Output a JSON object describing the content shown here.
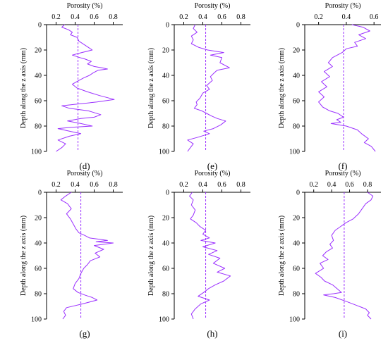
{
  "figure": {
    "panel_axis_label": "Porosity (%)",
    "depth_axis_label": "Depth along the z axis (mm)",
    "colors": {
      "profile": "#9b30ff",
      "mean_line": "#9b30ff",
      "axis": "#000000"
    }
  },
  "chart_data": [
    {
      "panel": "(d)",
      "type": "line",
      "title": "",
      "xlabel": "Porosity (%)",
      "ylabel": "Depth along the z axis (mm)",
      "xlim": [
        0.1,
        0.9
      ],
      "xticks": [
        0.2,
        0.4,
        0.6,
        0.8
      ],
      "ylim": [
        0,
        100
      ],
      "yticks": [
        0,
        20,
        40,
        60,
        80,
        100
      ],
      "y_inverted": true,
      "x_axis_position": "top",
      "mean_line_x": 0.43,
      "series": [
        {
          "x": [
            0.29,
            0.26,
            0.33,
            0.37,
            0.35,
            0.42,
            0.44,
            0.52,
            0.58,
            0.47,
            0.37,
            0.45,
            0.5,
            0.57,
            0.53,
            0.6,
            0.68,
            0.74,
            0.64,
            0.59,
            0.55,
            0.49,
            0.44,
            0.37,
            0.42,
            0.53,
            0.66,
            0.81,
            0.63,
            0.38,
            0.26,
            0.34,
            0.54,
            0.67,
            0.6,
            0.46,
            0.32,
            0.46,
            0.58,
            0.36,
            0.22,
            0.34,
            0.46,
            0.34,
            0.22,
            0.3,
            0.26,
            0.2
          ],
          "y": [
            0,
            2,
            4,
            6,
            8,
            10,
            13,
            17,
            20,
            22,
            24,
            26,
            27,
            29,
            31,
            33,
            34,
            35,
            36,
            38,
            40,
            42,
            44,
            47,
            50,
            53,
            56,
            59,
            61,
            63,
            64,
            66,
            68,
            71,
            73,
            74,
            76,
            78,
            80,
            81,
            82,
            84,
            86,
            88,
            91,
            94,
            97,
            100
          ]
        }
      ]
    },
    {
      "panel": "(e)",
      "type": "line",
      "title": "",
      "xlabel": "Porosity (%)",
      "ylabel": "Depth along the z axis (mm)",
      "xlim": [
        0.1,
        0.9
      ],
      "xticks": [
        0.2,
        0.4,
        0.6,
        0.8
      ],
      "ylim": [
        0,
        100
      ],
      "yticks": [
        0,
        20,
        40,
        60,
        80,
        100
      ],
      "y_inverted": true,
      "x_axis_position": "top",
      "mean_line_x": 0.43,
      "series": [
        {
          "x": [
            0.32,
            0.3,
            0.34,
            0.28,
            0.3,
            0.28,
            0.36,
            0.45,
            0.62,
            0.48,
            0.6,
            0.58,
            0.68,
            0.55,
            0.52,
            0.48,
            0.5,
            0.44,
            0.47,
            0.4,
            0.37,
            0.33,
            0.34,
            0.31,
            0.39,
            0.44,
            0.49,
            0.55,
            0.64,
            0.59,
            0.51,
            0.41,
            0.47,
            0.34,
            0.24,
            0.3,
            0.27,
            0.24
          ],
          "y": [
            0,
            3,
            6,
            9,
            12,
            15,
            18,
            20,
            22,
            24,
            26,
            30,
            34,
            36,
            38,
            41,
            44,
            48,
            51,
            54,
            58,
            61,
            63,
            66,
            68,
            70,
            72,
            74,
            76,
            79,
            82,
            84,
            86,
            89,
            91,
            94,
            97,
            100
          ]
        }
      ]
    },
    {
      "panel": "(f)",
      "type": "line",
      "title": "",
      "xlabel": "Porosity (%)",
      "ylabel": "Depth along the z axis (mm)",
      "xlim": [
        0.1,
        0.65
      ],
      "xticks": [
        0.2,
        0.4,
        0.6
      ],
      "ylim": [
        0,
        100
      ],
      "yticks": [
        0,
        20,
        40,
        60,
        80,
        100
      ],
      "y_inverted": true,
      "x_axis_position": "top",
      "mean_line_x": 0.38,
      "series": [
        {
          "x": [
            0.44,
            0.52,
            0.57,
            0.49,
            0.54,
            0.46,
            0.48,
            0.4,
            0.37,
            0.3,
            0.27,
            0.3,
            0.24,
            0.28,
            0.22,
            0.26,
            0.2,
            0.24,
            0.2,
            0.23,
            0.28,
            0.34,
            0.38,
            0.33,
            0.36,
            0.29,
            0.4,
            0.48,
            0.51,
            0.56,
            0.53,
            0.58,
            0.61
          ],
          "y": [
            0,
            2,
            5,
            8,
            11,
            14,
            17,
            19,
            22,
            26,
            30,
            33,
            37,
            41,
            45,
            49,
            53,
            57,
            61,
            65,
            68,
            70,
            73,
            75,
            77,
            78,
            80,
            83,
            86,
            90,
            93,
            96,
            100
          ]
        }
      ]
    },
    {
      "panel": "(g)",
      "type": "line",
      "title": "",
      "xlabel": "Porosity (%)",
      "ylabel": "Depth along the z axis (mm)",
      "xlim": [
        0.1,
        0.9
      ],
      "xticks": [
        0.2,
        0.4,
        0.6,
        0.8
      ],
      "ylim": [
        0,
        100
      ],
      "yticks": [
        0,
        20,
        40,
        60,
        80,
        100
      ],
      "y_inverted": true,
      "x_axis_position": "top",
      "mean_line_x": 0.46,
      "series": [
        {
          "x": [
            0.36,
            0.3,
            0.25,
            0.32,
            0.36,
            0.31,
            0.35,
            0.38,
            0.41,
            0.44,
            0.5,
            0.55,
            0.65,
            0.74,
            0.62,
            0.8,
            0.6,
            0.7,
            0.61,
            0.66,
            0.56,
            0.53,
            0.49,
            0.46,
            0.44,
            0.4,
            0.38,
            0.43,
            0.5,
            0.58,
            0.63,
            0.48,
            0.31,
            0.28,
            0.3,
            0.27
          ],
          "y": [
            0,
            3,
            6,
            9,
            13,
            17,
            21,
            25,
            29,
            32,
            34,
            36,
            37,
            38,
            39,
            40,
            42,
            45,
            48,
            51,
            54,
            57,
            60,
            64,
            68,
            72,
            76,
            79,
            81,
            83,
            85,
            88,
            91,
            94,
            97,
            100
          ]
        }
      ]
    },
    {
      "panel": "(h)",
      "type": "line",
      "title": "",
      "xlabel": "Porosity (%)",
      "ylabel": "Depth along the z axis (mm)",
      "xlim": [
        0.1,
        0.9
      ],
      "xticks": [
        0.2,
        0.4,
        0.6,
        0.8
      ],
      "ylim": [
        0,
        100
      ],
      "yticks": [
        0,
        20,
        40,
        60,
        80,
        100
      ],
      "y_inverted": true,
      "x_axis_position": "top",
      "mean_line_x": 0.43,
      "series": [
        {
          "x": [
            0.29,
            0.26,
            0.3,
            0.28,
            0.32,
            0.3,
            0.27,
            0.33,
            0.37,
            0.43,
            0.4,
            0.47,
            0.38,
            0.53,
            0.4,
            0.55,
            0.46,
            0.58,
            0.51,
            0.63,
            0.55,
            0.69,
            0.62,
            0.53,
            0.46,
            0.41,
            0.35,
            0.47,
            0.38,
            0.32,
            0.28,
            0.3
          ],
          "y": [
            0,
            3,
            6,
            10,
            14,
            18,
            21,
            24,
            27,
            30,
            33,
            36,
            38,
            40,
            43,
            46,
            49,
            52,
            56,
            60,
            63,
            66,
            70,
            73,
            76,
            79,
            82,
            85,
            88,
            92,
            96,
            100
          ]
        }
      ]
    },
    {
      "panel": "(i)",
      "type": "line",
      "title": "",
      "xlabel": "Porosity (%)",
      "ylabel": "Depth along the z axis (mm)",
      "xlim": [
        0.1,
        0.95
      ],
      "xticks": [
        0.2,
        0.4,
        0.6,
        0.8
      ],
      "ylim": [
        0,
        100
      ],
      "yticks": [
        0,
        20,
        40,
        60,
        80,
        100
      ],
      "y_inverted": true,
      "x_axis_position": "top",
      "mean_line_x": 0.54,
      "series": [
        {
          "x": [
            0.8,
            0.86,
            0.84,
            0.78,
            0.74,
            0.7,
            0.64,
            0.56,
            0.5,
            0.44,
            0.4,
            0.42,
            0.38,
            0.41,
            0.34,
            0.3,
            0.36,
            0.27,
            0.31,
            0.22,
            0.28,
            0.32,
            0.41,
            0.46,
            0.51,
            0.42,
            0.31,
            0.44,
            0.56,
            0.67,
            0.78,
            0.82,
            0.8,
            0.84
          ],
          "y": [
            0,
            3,
            6,
            9,
            13,
            17,
            21,
            24,
            27,
            30,
            34,
            38,
            41,
            44,
            47,
            50,
            53,
            56,
            60,
            64,
            67,
            70,
            73,
            76,
            79,
            80,
            81,
            83,
            86,
            89,
            92,
            95,
            97,
            100
          ]
        }
      ]
    }
  ]
}
